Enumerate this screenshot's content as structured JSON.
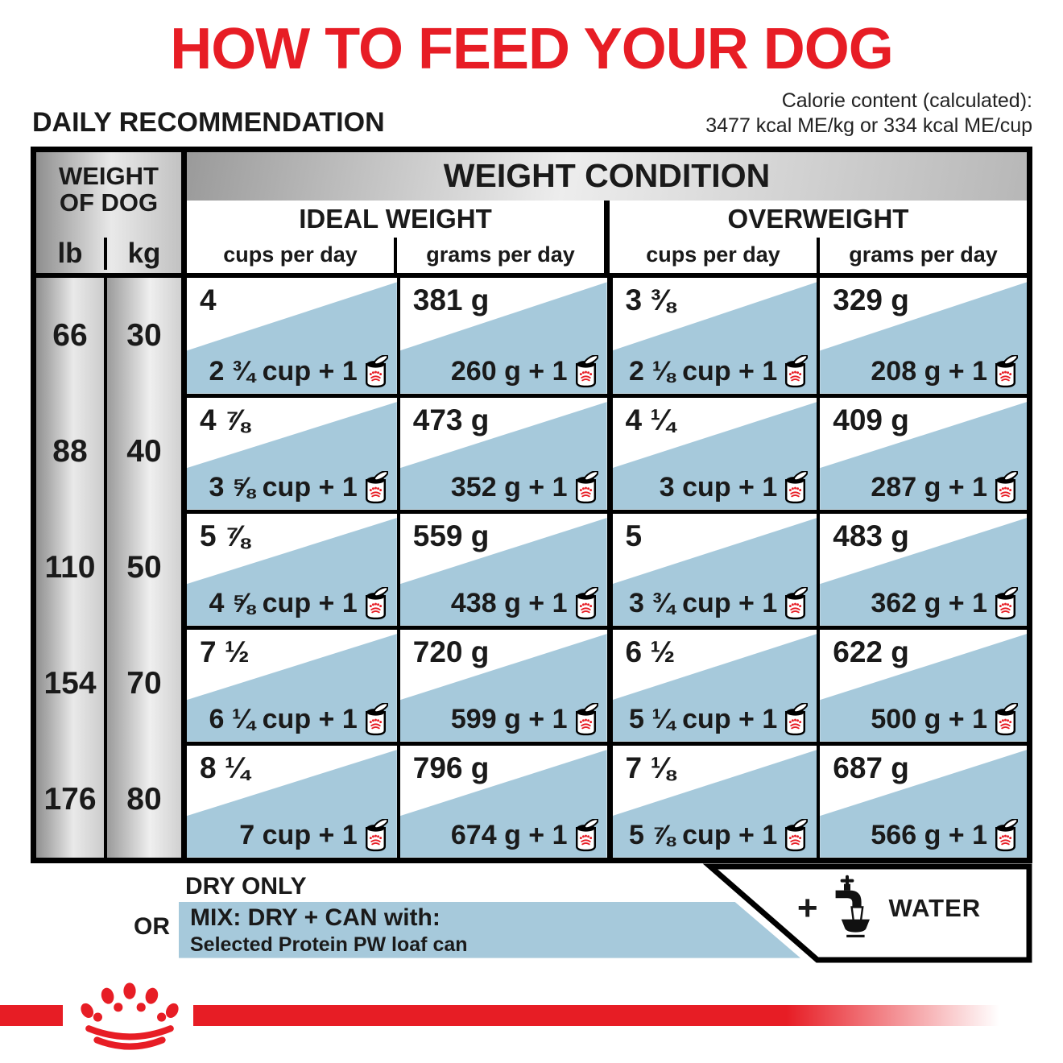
{
  "title": "HOW TO FEED YOUR DOG",
  "section": {
    "heading": "DAILY RECOMMENDATION",
    "calorie_line1": "Calorie content (calculated):",
    "calorie_line2": "3477 kcal ME/kg or 334 kcal ME/cup"
  },
  "table": {
    "weight_label_line1": "WEIGHT",
    "weight_label_line2": "OF DOG",
    "lb_label": "lb",
    "kg_label": "kg",
    "condition_label": "WEIGHT CONDITION",
    "ideal_label": "IDEAL WEIGHT",
    "overweight_label": "OVERWEIGHT",
    "cups_label": "cups per day",
    "grams_label": "grams per day",
    "rows": [
      {
        "lb": "66",
        "kg": "30",
        "cells": [
          {
            "dry": "4",
            "mix": "2 ¾ cup + 1"
          },
          {
            "dry": "381 g",
            "mix": "260 g + 1"
          },
          {
            "dry": "3 ⅜",
            "mix": "2 ⅛ cup + 1"
          },
          {
            "dry": "329 g",
            "mix": "208 g + 1"
          }
        ]
      },
      {
        "lb": "88",
        "kg": "40",
        "cells": [
          {
            "dry": "4 ⅞",
            "mix": "3 ⅝ cup + 1"
          },
          {
            "dry": "473 g",
            "mix": "352 g + 1"
          },
          {
            "dry": "4 ¼",
            "mix": "3 cup + 1"
          },
          {
            "dry": "409 g",
            "mix": "287 g + 1"
          }
        ]
      },
      {
        "lb": "110",
        "kg": "50",
        "cells": [
          {
            "dry": "5 ⅞",
            "mix": "4 ⅝ cup + 1"
          },
          {
            "dry": "559 g",
            "mix": "438 g + 1"
          },
          {
            "dry": "5",
            "mix": "3 ¾ cup + 1"
          },
          {
            "dry": "483 g",
            "mix": "362 g + 1"
          }
        ]
      },
      {
        "lb": "154",
        "kg": "70",
        "cells": [
          {
            "dry": "7 ½",
            "mix": "6 ¼ cup + 1"
          },
          {
            "dry": "720 g",
            "mix": "599 g + 1"
          },
          {
            "dry": "6 ½",
            "mix": "5 ¼ cup + 1"
          },
          {
            "dry": "622 g",
            "mix": "500 g + 1"
          }
        ]
      },
      {
        "lb": "176",
        "kg": "80",
        "cells": [
          {
            "dry": "8 ¼",
            "mix": "7 cup + 1"
          },
          {
            "dry": "796 g",
            "mix": "674 g + 1"
          },
          {
            "dry": "7 ⅛",
            "mix": "5 ⅞ cup + 1"
          },
          {
            "dry": "687 g",
            "mix": "566 g + 1"
          }
        ]
      }
    ]
  },
  "legend": {
    "dry_only": "DRY ONLY",
    "or": "OR",
    "mix_line1": "MIX: DRY + CAN with:",
    "mix_line2": "Selected Protein PW loaf can",
    "plus": "+",
    "water": "WATER"
  },
  "icons": {
    "can": "can-of-wet-dog-food",
    "tap": "water-tap-filling-bowl",
    "crown": "royal-canin-crown"
  },
  "colors": {
    "brand_red": "#e71d25",
    "mix_blue": "#a6c9db"
  }
}
